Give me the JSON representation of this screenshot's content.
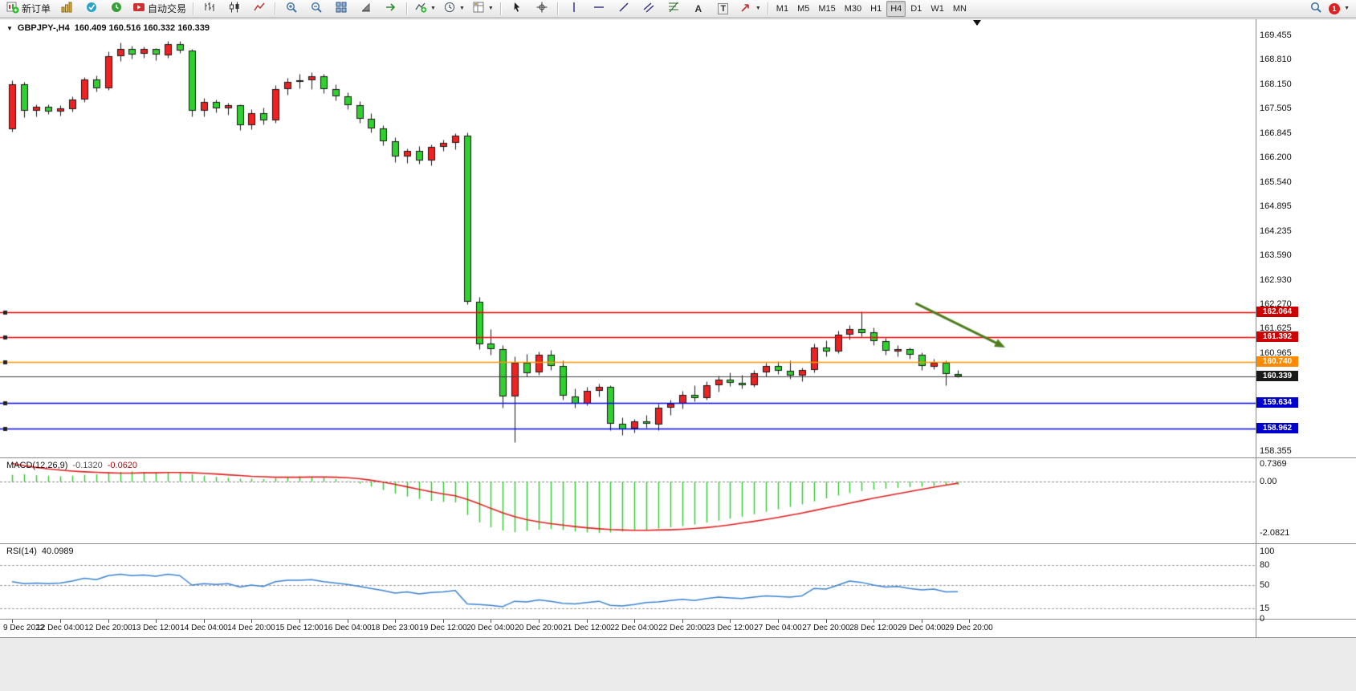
{
  "toolbar": {
    "new_order": "新订单",
    "autotrading": "自动交易",
    "timeframes": [
      "M1",
      "M5",
      "M15",
      "M30",
      "H1",
      "H4",
      "D1",
      "W1",
      "MN"
    ],
    "active_timeframe": "H4",
    "badge_count": "1"
  },
  "chart_header": {
    "symbol": "GBPJPY-,H4",
    "ohlc": "160.409 160.516 160.332 160.339"
  },
  "macd_header": {
    "label": "MACD(12,26,9)",
    "macd_value": "-0.1320",
    "signal_value": "-0.0620"
  },
  "rsi_header": {
    "label": "RSI(14)",
    "value": "40.0989"
  },
  "chart_data": [
    {
      "type": "candlestick",
      "title": "GBPJPY-,H4",
      "ohlc_display": [
        160.409,
        160.516,
        160.332,
        160.339
      ],
      "up_color": "#ee2222",
      "down_color": "#2fd12f",
      "outline_color": "#161616",
      "ylim": [
        158.355,
        169.455
      ],
      "y_ticks": [
        "169.455",
        "168.810",
        "168.150",
        "167.505",
        "166.845",
        "166.200",
        "165.540",
        "164.895",
        "164.235",
        "163.590",
        "162.930",
        "162.270",
        "161.625",
        "160.965",
        "158.355"
      ],
      "x_labels": [
        "9 Dec 2022",
        "12 Dec 04:00",
        "12 Dec 20:00",
        "13 Dec 12:00",
        "14 Dec 04:00",
        "14 Dec 20:00",
        "15 Dec 12:00",
        "16 Dec 04:00",
        "18 Dec 23:00",
        "19 Dec 12:00",
        "20 Dec 04:00",
        "20 Dec 20:00",
        "21 Dec 12:00",
        "22 Dec 04:00",
        "22 Dec 20:00",
        "23 Dec 12:00",
        "27 Dec 04:00",
        "27 Dec 20:00",
        "28 Dec 12:00",
        "29 Dec 04:00",
        "29 Dec 20:00"
      ],
      "bars_per_label": 4,
      "candles": [
        [
          166.95,
          168.25,
          166.88,
          168.15
        ],
        [
          168.15,
          168.22,
          167.28,
          167.45
        ],
        [
          167.45,
          167.62,
          167.3,
          167.55
        ],
        [
          167.55,
          167.62,
          167.35,
          167.42
        ],
        [
          167.42,
          167.58,
          167.32,
          167.5
        ],
        [
          167.5,
          167.82,
          167.42,
          167.75
        ],
        [
          167.75,
          168.35,
          167.68,
          168.28
        ],
        [
          168.28,
          168.38,
          167.95,
          168.05
        ],
        [
          168.05,
          169.02,
          168.0,
          168.9
        ],
        [
          168.9,
          169.26,
          168.78,
          169.1
        ],
        [
          169.1,
          169.18,
          168.84,
          168.95
        ],
        [
          168.95,
          169.15,
          168.86,
          169.08
        ],
        [
          169.08,
          169.12,
          168.8,
          168.92
        ],
        [
          168.92,
          169.3,
          168.86,
          169.22
        ],
        [
          169.22,
          169.3,
          168.98,
          169.05
        ],
        [
          169.05,
          169.1,
          167.3,
          167.45
        ],
        [
          167.45,
          167.78,
          167.3,
          167.68
        ],
        [
          167.68,
          167.75,
          167.4,
          167.5
        ],
        [
          167.5,
          167.66,
          167.34,
          167.58
        ],
        [
          167.58,
          167.62,
          166.92,
          167.05
        ],
        [
          167.05,
          167.48,
          166.95,
          167.38
        ],
        [
          167.38,
          167.52,
          167.08,
          167.18
        ],
        [
          167.18,
          168.12,
          167.12,
          168.02
        ],
        [
          168.02,
          168.32,
          167.88,
          168.22
        ],
        [
          168.22,
          168.42,
          168.04,
          168.26
        ],
        [
          168.26,
          168.46,
          168.02,
          168.36
        ],
        [
          168.36,
          168.42,
          167.92,
          168.02
        ],
        [
          168.02,
          168.14,
          167.72,
          167.82
        ],
        [
          167.82,
          167.94,
          167.48,
          167.58
        ],
        [
          167.58,
          167.7,
          167.12,
          167.22
        ],
        [
          167.22,
          167.38,
          166.86,
          166.96
        ],
        [
          166.96,
          167.06,
          166.52,
          166.62
        ],
        [
          166.62,
          166.74,
          166.06,
          166.22
        ],
        [
          166.22,
          166.44,
          166.04,
          166.38
        ],
        [
          166.38,
          166.5,
          166.02,
          166.12
        ],
        [
          166.12,
          166.54,
          165.98,
          166.48
        ],
        [
          166.48,
          166.68,
          166.38,
          166.58
        ],
        [
          166.58,
          166.84,
          166.42,
          166.78
        ],
        [
          166.78,
          166.86,
          162.28,
          162.35
        ],
        [
          162.35,
          162.46,
          161.08,
          161.22
        ],
        [
          161.22,
          161.62,
          160.92,
          161.08
        ],
        [
          161.08,
          161.18,
          159.52,
          159.82
        ],
        [
          159.82,
          160.88,
          158.6,
          160.72
        ],
        [
          160.72,
          160.95,
          160.35,
          160.45
        ],
        [
          160.45,
          161.02,
          160.38,
          160.92
        ],
        [
          160.92,
          161.06,
          160.52,
          160.62
        ],
        [
          160.62,
          160.78,
          159.72,
          159.82
        ],
        [
          159.82,
          160.02,
          159.52,
          159.62
        ],
        [
          159.62,
          160.06,
          159.58,
          159.96
        ],
        [
          159.96,
          160.16,
          159.82,
          160.06
        ],
        [
          160.06,
          160.12,
          158.92,
          159.08
        ],
        [
          159.08,
          159.26,
          158.78,
          158.94
        ],
        [
          158.94,
          159.22,
          158.84,
          159.14
        ],
        [
          159.14,
          159.32,
          158.98,
          159.08
        ],
        [
          159.08,
          159.62,
          158.92,
          159.52
        ],
        [
          159.52,
          159.72,
          159.32,
          159.62
        ],
        [
          159.62,
          159.96,
          159.5,
          159.86
        ],
        [
          159.86,
          160.12,
          159.68,
          159.78
        ],
        [
          159.78,
          160.22,
          159.72,
          160.12
        ],
        [
          160.12,
          160.36,
          159.94,
          160.26
        ],
        [
          160.26,
          160.46,
          160.08,
          160.18
        ],
        [
          160.18,
          160.4,
          160.02,
          160.12
        ],
        [
          160.12,
          160.52,
          160.06,
          160.44
        ],
        [
          160.44,
          160.72,
          160.34,
          160.62
        ],
        [
          160.62,
          160.75,
          160.42,
          160.5
        ],
        [
          160.5,
          160.78,
          160.28,
          160.38
        ],
        [
          160.38,
          160.58,
          160.22,
          160.52
        ],
        [
          160.52,
          161.22,
          160.46,
          161.12
        ],
        [
          161.12,
          161.32,
          160.88,
          161.02
        ],
        [
          161.02,
          161.56,
          160.98,
          161.46
        ],
        [
          161.46,
          161.72,
          161.34,
          161.62
        ],
        [
          161.62,
          162.08,
          161.42,
          161.52
        ],
        [
          161.52,
          161.66,
          161.18,
          161.28
        ],
        [
          161.28,
          161.38,
          160.92,
          161.02
        ],
        [
          161.02,
          161.18,
          160.88,
          161.08
        ],
        [
          161.08,
          161.12,
          160.82,
          160.92
        ],
        [
          160.92,
          161.0,
          160.52,
          160.62
        ],
        [
          160.62,
          160.82,
          160.55,
          160.72
        ],
        [
          160.72,
          160.78,
          160.12,
          160.41
        ],
        [
          160.409,
          160.516,
          160.332,
          160.339
        ]
      ],
      "hlines": [
        {
          "price": 162.064,
          "label": "162.064",
          "color": "#ff0000",
          "tag": "#cc0000",
          "handle": true
        },
        {
          "price": 161.392,
          "label": "161.392",
          "color": "#ff0000",
          "tag": "#cc0000",
          "handle": true
        },
        {
          "price": 160.74,
          "label": "160.740",
          "color": "#ff9500",
          "tag": "#ff8a00",
          "handle": true
        },
        {
          "price": 160.339,
          "label": "160.339",
          "color": "#3c3c3c",
          "tag": "#1a1a1a",
          "handle": false
        },
        {
          "price": 159.634,
          "label": "159.634",
          "color": "#0000ee",
          "tag": "#0000cc",
          "handle": true
        },
        {
          "price": 158.962,
          "label": "158.962",
          "color": "#0000ee",
          "tag": "#0000cc",
          "handle": true
        }
      ],
      "arrow": {
        "from_bar": 75.5,
        "from_price": 162.3,
        "to_bar": 83,
        "to_price": 161.12,
        "color": "#4e7d1d"
      }
    },
    {
      "type": "bar",
      "title": "MACD(12,26,9)",
      "current_values": [
        -0.132,
        -0.062
      ],
      "y_ticks": [
        "0.7369",
        "0.00",
        "-2.0821"
      ],
      "ylim": [
        -2.5,
        0.95
      ],
      "hist_color": "#33cc33",
      "signal_color": "#e02020",
      "histogram": [
        0.28,
        0.3,
        0.26,
        0.24,
        0.22,
        0.24,
        0.28,
        0.3,
        0.34,
        0.4,
        0.42,
        0.4,
        0.38,
        0.4,
        0.38,
        0.3,
        0.24,
        0.2,
        0.16,
        0.12,
        0.12,
        0.1,
        0.14,
        0.18,
        0.22,
        0.2,
        0.16,
        0.1,
        0.02,
        -0.08,
        -0.2,
        -0.34,
        -0.48,
        -0.6,
        -0.7,
        -0.78,
        -0.82,
        -0.84,
        -1.35,
        -1.65,
        -1.85,
        -1.98,
        -2.05,
        -2.0,
        -1.95,
        -1.92,
        -1.96,
        -2.02,
        -2.06,
        -2.0821,
        -2.06,
        -2.02,
        -1.98,
        -1.95,
        -1.9,
        -1.85,
        -1.8,
        -1.74,
        -1.66,
        -1.58,
        -1.5,
        -1.42,
        -1.32,
        -1.22,
        -1.12,
        -1.02,
        -0.92,
        -0.8,
        -0.68,
        -0.56,
        -0.46,
        -0.38,
        -0.32,
        -0.28,
        -0.25,
        -0.22,
        -0.2,
        -0.17,
        -0.15,
        -0.132
      ],
      "signal": [
        0.7369,
        0.65,
        0.58,
        0.52,
        0.47,
        0.43,
        0.4,
        0.38,
        0.36,
        0.35,
        0.35,
        0.36,
        0.36,
        0.37,
        0.37,
        0.36,
        0.34,
        0.31,
        0.28,
        0.25,
        0.22,
        0.2,
        0.18,
        0.18,
        0.18,
        0.19,
        0.19,
        0.18,
        0.16,
        0.12,
        0.06,
        -0.02,
        -0.11,
        -0.21,
        -0.31,
        -0.41,
        -0.5,
        -0.57,
        -0.72,
        -0.9,
        -1.08,
        -1.26,
        -1.42,
        -1.54,
        -1.63,
        -1.7,
        -1.76,
        -1.82,
        -1.87,
        -1.91,
        -1.94,
        -1.96,
        -1.97,
        -1.97,
        -1.96,
        -1.95,
        -1.93,
        -1.9,
        -1.86,
        -1.81,
        -1.75,
        -1.68,
        -1.61,
        -1.53,
        -1.45,
        -1.36,
        -1.27,
        -1.17,
        -1.07,
        -0.97,
        -0.87,
        -0.77,
        -0.67,
        -0.58,
        -0.49,
        -0.4,
        -0.31,
        -0.22,
        -0.14,
        -0.062
      ]
    },
    {
      "type": "line",
      "title": "RSI(14)",
      "current_value": 40.0989,
      "y_ticks": [
        "100",
        "80",
        "50",
        "15",
        "0"
      ],
      "levels": [
        80,
        50,
        15
      ],
      "ylim": [
        0,
        100
      ],
      "line_color": "#3b82d0",
      "values": [
        55,
        52,
        53,
        52,
        53,
        56,
        60,
        58,
        64,
        66,
        64,
        65,
        63,
        66,
        64,
        50,
        52,
        51,
        52,
        47,
        50,
        48,
        55,
        57,
        57,
        58,
        55,
        53,
        51,
        48,
        45,
        42,
        38,
        40,
        37,
        39,
        40,
        42,
        22,
        21,
        20,
        18,
        26,
        25,
        28,
        26,
        23,
        22,
        24,
        26,
        20,
        19,
        21,
        24,
        25,
        27,
        29,
        27,
        30,
        32,
        31,
        30,
        32,
        34,
        33,
        32,
        34,
        45,
        44,
        50,
        56,
        54,
        50,
        47,
        48,
        45,
        43,
        44,
        40,
        40.0989
      ]
    }
  ]
}
